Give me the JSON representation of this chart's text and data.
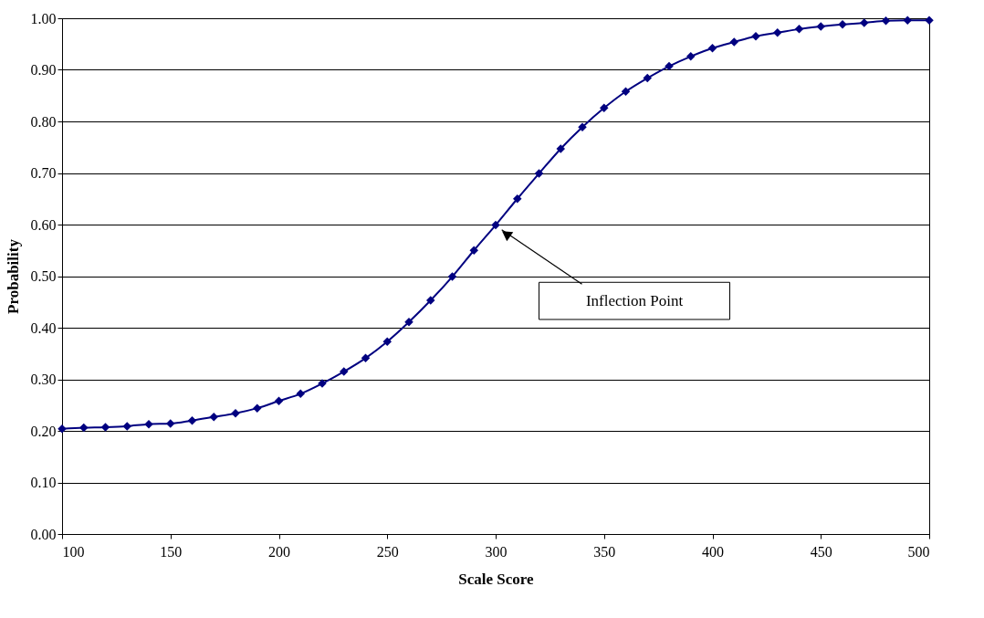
{
  "chart_data": {
    "type": "line",
    "xlabel": "Scale Score",
    "ylabel": "Probability",
    "x": [
      100,
      110,
      120,
      130,
      140,
      150,
      160,
      170,
      180,
      190,
      200,
      210,
      220,
      230,
      240,
      250,
      260,
      270,
      280,
      290,
      300,
      310,
      320,
      330,
      340,
      350,
      360,
      370,
      380,
      390,
      400,
      410,
      420,
      430,
      440,
      450,
      460,
      470,
      480,
      490,
      500
    ],
    "series": [
      {
        "color": "#000080",
        "values": [
          0.204,
          0.206,
          0.207,
          0.209,
          0.213,
          0.214,
          0.22,
          0.227,
          0.234,
          0.244,
          0.258,
          0.272,
          0.292,
          0.315,
          0.341,
          0.373,
          0.411,
          0.453,
          0.499,
          0.55,
          0.599,
          0.65,
          0.699,
          0.747,
          0.789,
          0.826,
          0.858,
          0.884,
          0.907,
          0.926,
          0.942,
          0.954,
          0.965,
          0.972,
          0.979,
          0.984,
          0.988,
          0.991,
          0.995,
          0.996,
          0.996
        ]
      }
    ],
    "xlim": [
      100,
      500
    ],
    "xticks": [
      100,
      150,
      200,
      250,
      300,
      350,
      400,
      450,
      500
    ],
    "ylim": [
      0,
      1
    ],
    "yticks": [
      {
        "value": 0,
        "label": "0.00"
      },
      {
        "value": 0.1,
        "label": "0.10"
      },
      {
        "value": 0.2,
        "label": "0.20"
      },
      {
        "value": 0.3,
        "label": "0.30"
      },
      {
        "value": 0.4,
        "label": "0.40"
      },
      {
        "value": 0.5,
        "label": "0.50"
      },
      {
        "value": 0.6,
        "label": "0.60"
      },
      {
        "value": 0.7,
        "label": "0.70"
      },
      {
        "value": 0.8,
        "label": "0.80"
      },
      {
        "value": 0.9,
        "label": "0.90"
      },
      {
        "value": 1,
        "label": "1.00"
      }
    ],
    "annotations": [
      {
        "text": "Inflection Point",
        "x": 300,
        "y": 0.6
      }
    ],
    "grid": "y",
    "marker": "diamond",
    "line_style": "solid"
  }
}
